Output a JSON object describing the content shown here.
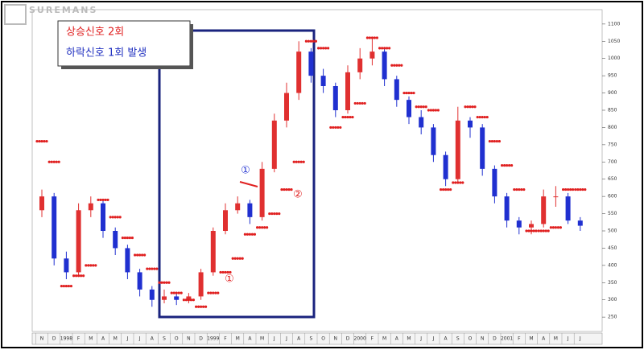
{
  "logo": "SUREMANS",
  "chart_data": {
    "type": "candlestick",
    "x": [
      "N",
      "D",
      "1998",
      "F",
      "M",
      "A",
      "M",
      "J",
      "J",
      "A",
      "S",
      "O",
      "N",
      "D",
      "1999",
      "F",
      "M",
      "A",
      "M",
      "J",
      "J",
      "A",
      "S",
      "O",
      "N",
      "D",
      "2000",
      "F",
      "M",
      "A",
      "M",
      "J",
      "J",
      "A",
      "S",
      "O",
      "N",
      "D",
      "2001",
      "F",
      "M",
      "A",
      "M",
      "J",
      "J"
    ],
    "open": [
      560,
      600,
      420,
      380,
      560,
      580,
      500,
      450,
      380,
      330,
      300,
      310,
      300,
      310,
      380,
      500,
      560,
      580,
      540,
      680,
      820,
      900,
      1020,
      950,
      920,
      850,
      960,
      1000,
      1020,
      940,
      880,
      830,
      800,
      720,
      650,
      820,
      800,
      680,
      600,
      530,
      510,
      520,
      600,
      600,
      530
    ],
    "high": [
      620,
      610,
      440,
      580,
      600,
      590,
      510,
      460,
      390,
      340,
      330,
      320,
      320,
      390,
      510,
      580,
      600,
      590,
      700,
      840,
      930,
      1050,
      1030,
      970,
      930,
      980,
      1030,
      1060,
      1030,
      950,
      890,
      850,
      810,
      730,
      860,
      830,
      810,
      690,
      610,
      540,
      530,
      620,
      630,
      610,
      540
    ],
    "low": [
      540,
      400,
      360,
      370,
      540,
      480,
      430,
      360,
      310,
      280,
      290,
      285,
      290,
      300,
      370,
      490,
      550,
      520,
      530,
      670,
      800,
      880,
      930,
      900,
      830,
      840,
      940,
      980,
      920,
      860,
      810,
      780,
      700,
      630,
      640,
      770,
      660,
      580,
      510,
      490,
      490,
      510,
      570,
      520,
      500
    ],
    "close": [
      600,
      420,
      380,
      560,
      580,
      500,
      450,
      380,
      330,
      300,
      310,
      300,
      310,
      380,
      500,
      560,
      580,
      540,
      680,
      820,
      900,
      1020,
      950,
      920,
      850,
      960,
      1000,
      1020,
      940,
      880,
      830,
      800,
      720,
      650,
      820,
      800,
      680,
      600,
      530,
      510,
      520,
      600,
      600,
      530,
      515
    ],
    "up_color": "#e03030",
    "down_color": "#2030d0",
    "sar": {
      "color": "#e02020",
      "values": [
        760,
        700,
        340,
        370,
        400,
        590,
        540,
        480,
        430,
        390,
        350,
        320,
        300,
        280,
        320,
        380,
        420,
        490,
        510,
        550,
        620,
        700,
        1050,
        1030,
        800,
        830,
        870,
        1060,
        1030,
        980,
        900,
        860,
        850,
        620,
        640,
        860,
        830,
        760,
        690,
        620,
        500,
        500,
        510,
        620,
        620
      ]
    },
    "ylim": [
      220,
      1130
    ],
    "yticks": [
      250,
      300,
      350,
      400,
      450,
      500,
      550,
      600,
      650,
      700,
      750,
      800,
      850,
      900,
      950,
      1000,
      1050,
      1100
    ],
    "legend": [
      {
        "text": "상승신호 2회",
        "color": "#e02020"
      },
      {
        "text": "하락신호 1회 발생",
        "color": "#2030c0"
      }
    ],
    "annotations": [
      {
        "text": "①",
        "color": "#e02020"
      },
      {
        "text": "①",
        "color": "#2030d0"
      },
      {
        "text": "②",
        "color": "#e02020"
      }
    ]
  }
}
